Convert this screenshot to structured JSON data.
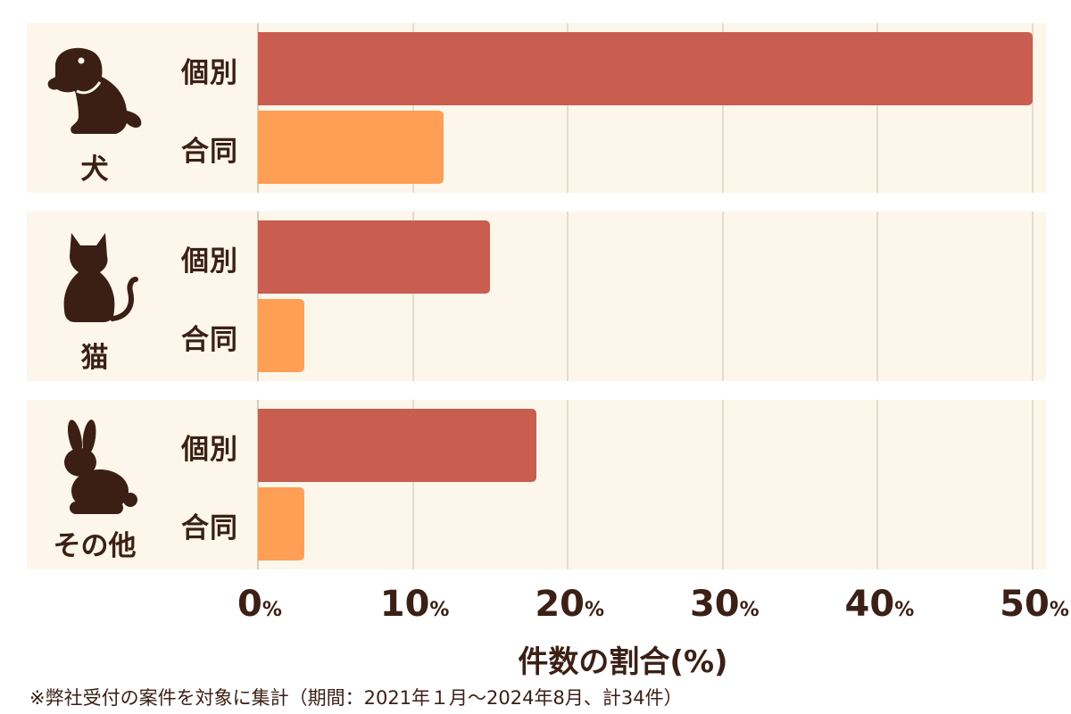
{
  "chart_data": {
    "type": "bar",
    "orientation": "horizontal",
    "groups": [
      {
        "label": "犬",
        "icon": "dog-icon",
        "items": [
          {
            "label": "個別",
            "value": 50.0
          },
          {
            "label": "合同",
            "value": 12.0
          }
        ]
      },
      {
        "label": "猫",
        "icon": "cat-icon",
        "items": [
          {
            "label": "個別",
            "value": 15.0
          },
          {
            "label": "合同",
            "value": 3.0
          }
        ]
      },
      {
        "label": "その他",
        "icon": "rabbit-icon",
        "items": [
          {
            "label": "個別",
            "value": 18.0
          },
          {
            "label": "合同",
            "value": 3.0
          }
        ]
      }
    ],
    "series_colors": {
      "個別": "#c85d50",
      "合同": "#ff9f55"
    },
    "xlim": [
      0,
      50
    ],
    "ticks": [
      0,
      10,
      20,
      30,
      40,
      50
    ],
    "tick_suffix": "%",
    "xlabel": "件数の割合(%)",
    "grid": true,
    "footnote": "※弊社受付の案件を対象に集計（期間：2021年１月～2024年8月、計34件）"
  }
}
